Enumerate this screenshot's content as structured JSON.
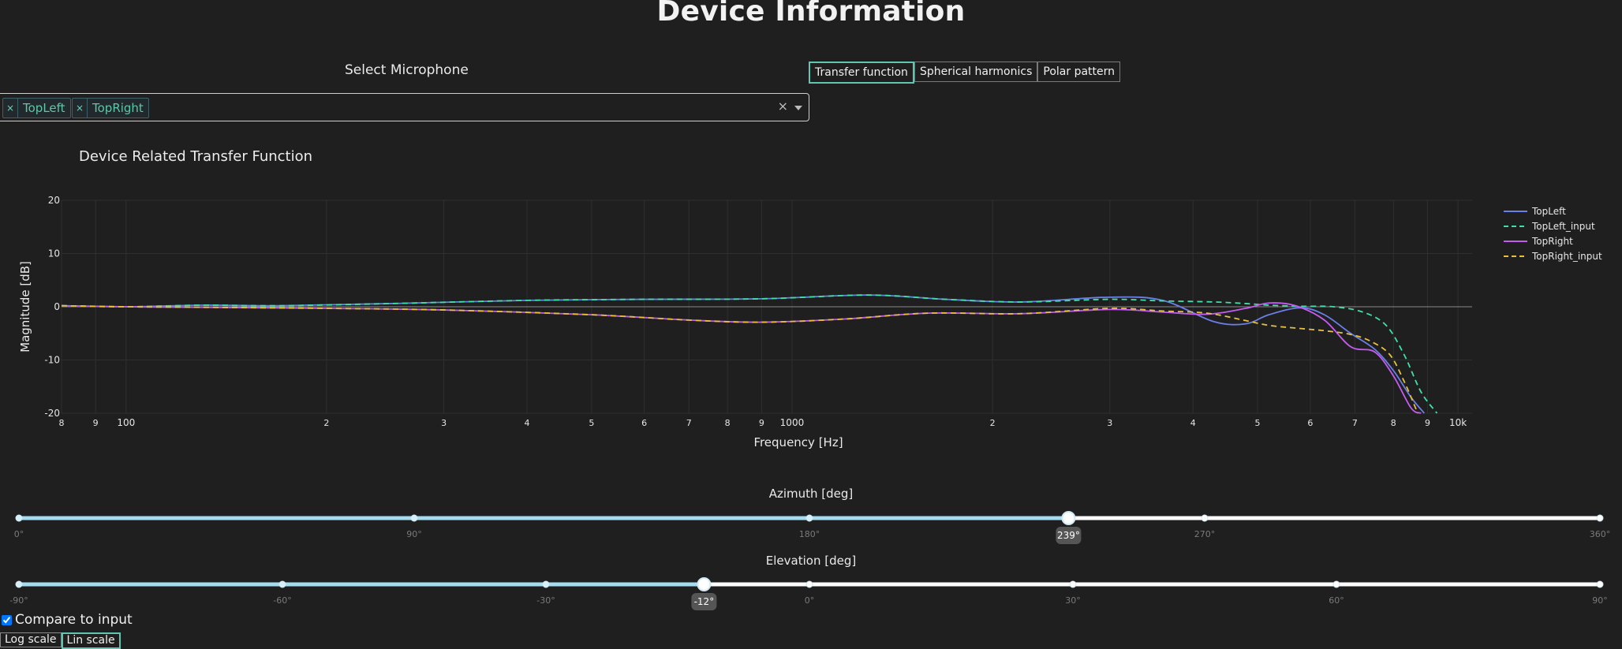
{
  "header": {
    "title": "Device Information"
  },
  "mic_select": {
    "label": "Select Microphone",
    "chips": [
      {
        "remove": "×",
        "label": "TopLeft"
      },
      {
        "remove": "×",
        "label": "TopRight"
      }
    ],
    "clear": "×"
  },
  "view_tabs": [
    "Transfer function",
    "Spherical harmonics",
    "Polar pattern"
  ],
  "colors": {
    "TopLeft": "#6b7fe8",
    "TopLeft_input": "#3fe0a8",
    "TopRight": "#c45cf0",
    "TopRight_input": "#e8c03a",
    "slider_fill": "#a6dcf0"
  },
  "chart_data": {
    "type": "line",
    "title": "Device Related Transfer Function",
    "xlabel": "Frequency [Hz]",
    "ylabel": "Magnitude [dB]",
    "xscale": "log",
    "xlim": [
      80,
      10500
    ],
    "ylim": [
      -20,
      20
    ],
    "yticks": [
      20,
      10,
      0,
      -10,
      -20
    ],
    "xticks": [
      {
        "v": 80,
        "label": "8"
      },
      {
        "v": 90,
        "label": "9"
      },
      {
        "v": 100,
        "label": "100"
      },
      {
        "v": 200,
        "label": "2"
      },
      {
        "v": 300,
        "label": "3"
      },
      {
        "v": 400,
        "label": "4"
      },
      {
        "v": 500,
        "label": "5"
      },
      {
        "v": 600,
        "label": "6"
      },
      {
        "v": 700,
        "label": "7"
      },
      {
        "v": 800,
        "label": "8"
      },
      {
        "v": 900,
        "label": "9"
      },
      {
        "v": 1000,
        "label": "1000"
      },
      {
        "v": 2000,
        "label": "2"
      },
      {
        "v": 3000,
        "label": "3"
      },
      {
        "v": 4000,
        "label": "4"
      },
      {
        "v": 5000,
        "label": "5"
      },
      {
        "v": 6000,
        "label": "6"
      },
      {
        "v": 7000,
        "label": "7"
      },
      {
        "v": 8000,
        "label": "8"
      },
      {
        "v": 9000,
        "label": "9"
      },
      {
        "v": 10000,
        "label": "10k"
      }
    ],
    "legend_position": "top-right",
    "series": [
      {
        "name": "TopLeft",
        "dash": false,
        "x": [
          80,
          100,
          130,
          170,
          250,
          400,
          600,
          900,
          1300,
          1700,
          2200,
          3000,
          3600,
          4300,
          4800,
          5200,
          5800,
          6300,
          6900,
          7500,
          8000,
          8500,
          8900
        ],
        "y": [
          0.2,
          0,
          0.3,
          0.2,
          0.6,
          1.2,
          1.4,
          1.5,
          2.2,
          1.4,
          0.9,
          1.8,
          1.2,
          -2.8,
          -3.2,
          -1.5,
          -0.2,
          -1.5,
          -5.0,
          -8.0,
          -12,
          -17,
          -20
        ]
      },
      {
        "name": "TopLeft_input",
        "dash": true,
        "x": [
          80,
          100,
          130,
          170,
          250,
          400,
          600,
          900,
          1300,
          1700,
          2200,
          3000,
          3600,
          4300,
          4800,
          5200,
          5800,
          6500,
          7200,
          7800,
          8300,
          8800,
          9300
        ],
        "y": [
          0.2,
          0,
          0.3,
          0.2,
          0.6,
          1.2,
          1.4,
          1.5,
          2.2,
          1.4,
          0.9,
          1.4,
          1.1,
          0.9,
          0.6,
          0.3,
          0.1,
          0,
          -1.0,
          -3.5,
          -9,
          -16,
          -20
        ]
      },
      {
        "name": "TopRight",
        "dash": false,
        "x": [
          80,
          100,
          130,
          200,
          300,
          500,
          700,
          900,
          1200,
          1600,
          2200,
          3000,
          3600,
          4200,
          4800,
          5200,
          5700,
          6300,
          6900,
          7500,
          8000,
          8500,
          8800
        ],
        "y": [
          0.2,
          0,
          -0.1,
          -0.3,
          -0.6,
          -1.5,
          -2.5,
          -2.9,
          -2.3,
          -1.2,
          -1.3,
          -0.5,
          -1.0,
          -1.4,
          -0.3,
          0.7,
          0.2,
          -2.5,
          -7.5,
          -8.5,
          -13,
          -19,
          -20
        ]
      },
      {
        "name": "TopRight_input",
        "dash": true,
        "x": [
          80,
          100,
          130,
          200,
          300,
          500,
          700,
          900,
          1200,
          1600,
          2200,
          3000,
          3600,
          4200,
          4800,
          5200,
          5700,
          6300,
          6900,
          7400,
          7900,
          8300,
          8700
        ],
        "y": [
          0.2,
          0,
          -0.1,
          -0.3,
          -0.6,
          -1.5,
          -2.5,
          -2.9,
          -2.3,
          -1.2,
          -1.3,
          -0.3,
          -0.8,
          -1.2,
          -2.6,
          -3.5,
          -4.0,
          -4.5,
          -5.2,
          -6.5,
          -9,
          -14,
          -20
        ]
      }
    ]
  },
  "azimuth": {
    "label": "Azimuth [deg]",
    "min": 0,
    "max": 360,
    "value": 239,
    "value_label": "239°",
    "marks": [
      {
        "v": 0,
        "label": "0°"
      },
      {
        "v": 90,
        "label": "90°"
      },
      {
        "v": 180,
        "label": "180°"
      },
      {
        "v": 270,
        "label": "270°"
      },
      {
        "v": 360,
        "label": "360°"
      }
    ]
  },
  "elevation": {
    "label": "Elevation [deg]",
    "min": -90,
    "max": 90,
    "value": -12,
    "value_label": "-12°",
    "marks": [
      {
        "v": -90,
        "label": "-90°"
      },
      {
        "v": -60,
        "label": "-60°"
      },
      {
        "v": -30,
        "label": "-30°"
      },
      {
        "v": 0,
        "label": "0°"
      },
      {
        "v": 30,
        "label": "30°"
      },
      {
        "v": 60,
        "label": "60°"
      },
      {
        "v": 90,
        "label": "90°"
      }
    ]
  },
  "compare": {
    "label": "Compare to input",
    "checked": true
  },
  "scale_buttons": [
    "Log scale",
    "Lin scale"
  ]
}
